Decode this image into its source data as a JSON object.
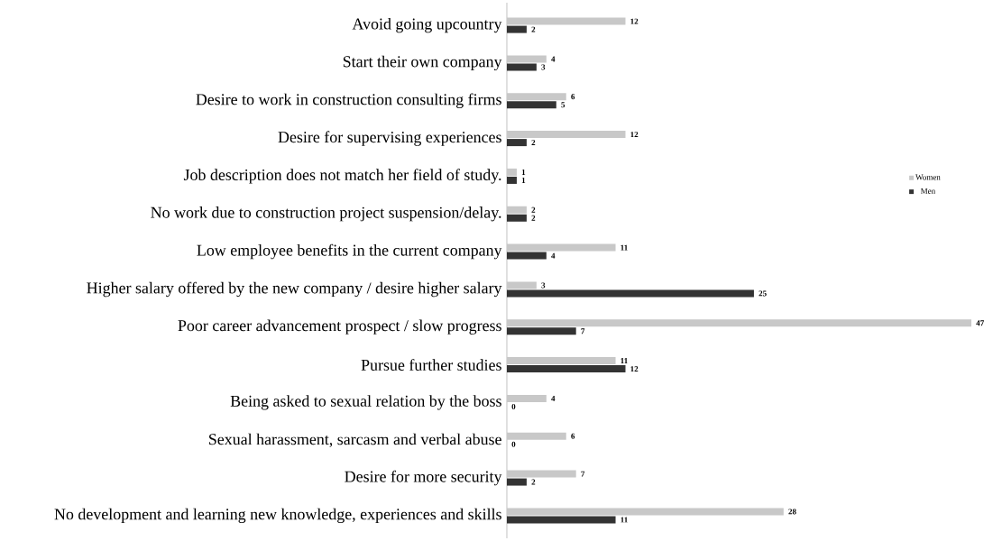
{
  "chart_data": {
    "type": "bar",
    "orientation": "horizontal",
    "data_labels": true,
    "legend": "right",
    "categories": [
      "Avoid going upcountry",
      "Start their own company",
      "Desire to work in construction consulting firms",
      "Desire for supervising experiences",
      "Job description does not match her field of study.",
      "No work due to construction project suspension/delay.",
      "Low employee benefits in the current company",
      "Higher salary offered by the new company / desire higher salary",
      "Poor career advancement prospect / slow progress",
      "Pursue further studies",
      "Being asked to sexual relation by the boss",
      "Sexual harassment, sarcasm and verbal abuse",
      "Desire for more security",
      "No development and learning new knowledge, experiences and skills"
    ],
    "series": [
      {
        "name": "Women",
        "color": "#c8c8c8",
        "values": [
          12,
          4,
          6,
          12,
          1,
          2,
          11,
          3,
          47,
          11,
          4,
          6,
          7,
          28
        ]
      },
      {
        "name": "Men",
        "color": "#333333",
        "values": [
          2,
          3,
          5,
          2,
          1,
          2,
          4,
          25,
          7,
          12,
          0,
          0,
          2,
          11
        ]
      }
    ]
  }
}
